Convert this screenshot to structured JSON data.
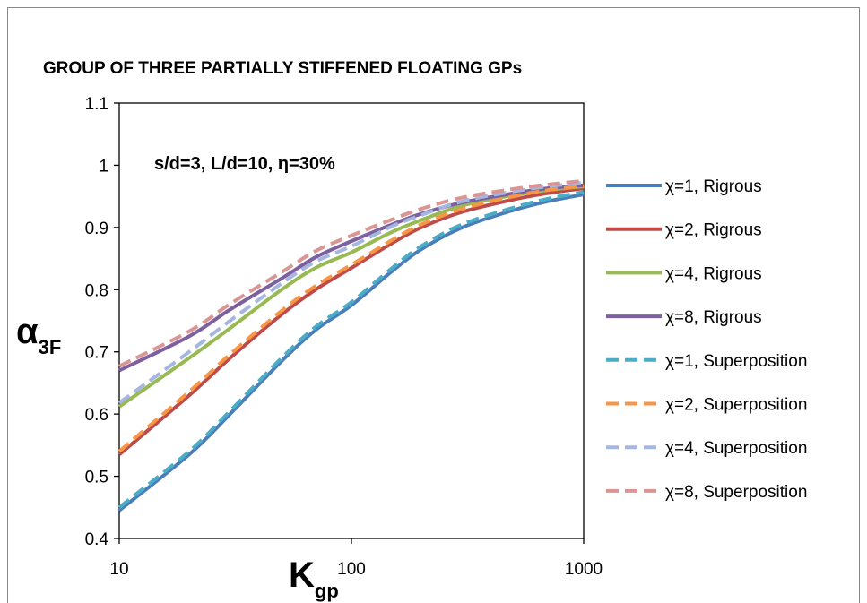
{
  "chart_data": {
    "type": "line",
    "title": "GROUP OF THREE PARTIALLY STIFFENED  FLOATING GPs",
    "annotation": "s/d=3, L/d=10, η=30%",
    "xlabel": {
      "main": "K",
      "sub": "gp"
    },
    "ylabel": {
      "main": "α",
      "sub": "3F"
    },
    "x_scale": "log",
    "xlim": [
      10,
      1000
    ],
    "ylim": [
      0.4,
      1.1
    ],
    "x_ticks": [
      "10",
      "100",
      "1000"
    ],
    "y_ticks": [
      "0.4",
      "0.5",
      "0.6",
      "0.7",
      "0.8",
      "0.9",
      "1",
      "1.1"
    ],
    "grid": false,
    "legend_position": "right",
    "x": [
      10,
      20,
      30,
      50,
      70,
      100,
      150,
      200,
      300,
      500,
      700,
      1000
    ],
    "series": [
      {
        "name": "χ=1, Rigrous",
        "color": "#4a7ebb",
        "dash": false,
        "values": [
          0.445,
          0.535,
          0.6,
          0.685,
          0.735,
          0.775,
          0.83,
          0.865,
          0.9,
          0.928,
          0.942,
          0.953
        ]
      },
      {
        "name": "χ=2, Rigrous",
        "color": "#be4b48",
        "dash": false,
        "values": [
          0.535,
          0.63,
          0.69,
          0.76,
          0.8,
          0.835,
          0.875,
          0.9,
          0.925,
          0.945,
          0.955,
          0.963
        ]
      },
      {
        "name": "χ=4, Rigrous",
        "color": "#98b954",
        "dash": false,
        "values": [
          0.612,
          0.69,
          0.738,
          0.8,
          0.835,
          0.86,
          0.893,
          0.912,
          0.935,
          0.952,
          0.96,
          0.966
        ]
      },
      {
        "name": "χ=8, Rigrous",
        "color": "#7d60a0",
        "dash": false,
        "values": [
          0.67,
          0.725,
          0.768,
          0.818,
          0.852,
          0.878,
          0.905,
          0.922,
          0.94,
          0.955,
          0.963,
          0.968
        ]
      },
      {
        "name": "χ=1, Superposition",
        "color": "#4bacc6",
        "dash": true,
        "values": [
          0.45,
          0.54,
          0.605,
          0.69,
          0.74,
          0.78,
          0.835,
          0.87,
          0.905,
          0.932,
          0.946,
          0.957
        ]
      },
      {
        "name": "χ=2, Superposition",
        "color": "#f79646",
        "dash": true,
        "values": [
          0.54,
          0.636,
          0.696,
          0.766,
          0.806,
          0.84,
          0.88,
          0.905,
          0.93,
          0.95,
          0.96,
          0.967
        ]
      },
      {
        "name": "χ=4, Superposition",
        "color": "#a5b6e0",
        "dash": true,
        "values": [
          0.618,
          0.7,
          0.75,
          0.81,
          0.845,
          0.87,
          0.902,
          0.92,
          0.942,
          0.958,
          0.966,
          0.972
        ]
      },
      {
        "name": "χ=8, Superposition",
        "color": "#d99694",
        "dash": true,
        "values": [
          0.677,
          0.733,
          0.777,
          0.828,
          0.862,
          0.887,
          0.913,
          0.93,
          0.948,
          0.962,
          0.969,
          0.975
        ]
      }
    ]
  }
}
